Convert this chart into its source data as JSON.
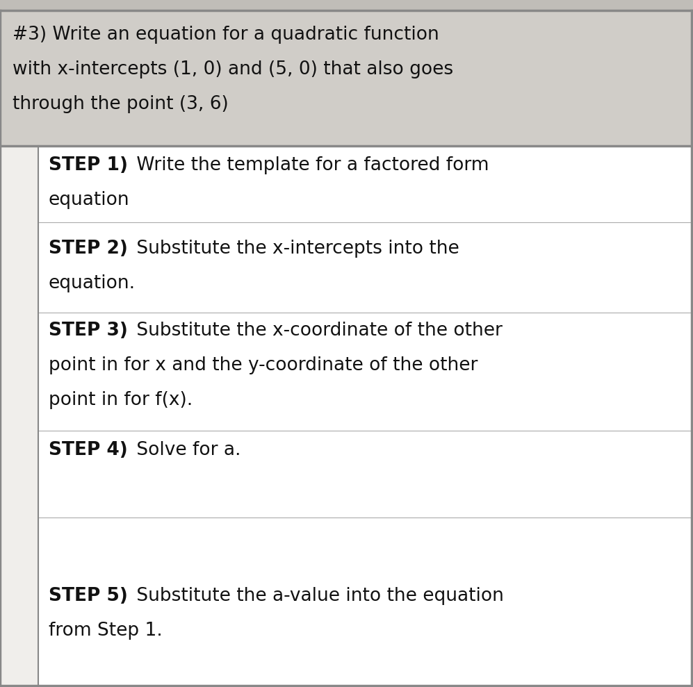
{
  "fig_width": 9.97,
  "fig_height": 9.89,
  "dpi": 100,
  "bg_color": "#d8d5d0",
  "header_bg": "#d0cdc8",
  "inner_bg": "#f0eeeb",
  "white_bg": "#ffffff",
  "border_color": "#888888",
  "text_color": "#111111",
  "title_lines": [
    "#3) Write an equation for a quadratic function",
    "with x-intercepts (1, 0) and (5, 0) that also goes",
    "through the point (3, 6)"
  ],
  "title_fontsize": 19,
  "step_fontsize": 19,
  "steps": [
    {
      "label": "STEP 1)",
      "rest": " Write the template for a factored form\nequation"
    },
    {
      "label": "STEP 2)",
      "rest": " Substitute the x-intercepts into the\nequation."
    },
    {
      "label": "STEP 3)",
      "rest": " Substitute the x-coordinate of the other\npoint in for x and the y-coordinate of the other\npoint in for f(x)."
    },
    {
      "label": "STEP 4)",
      "rest": " Solve for a."
    },
    {
      "label": "STEP 5)",
      "rest": " Substitute the a-value into the equation\nfrom Step 1."
    }
  ]
}
